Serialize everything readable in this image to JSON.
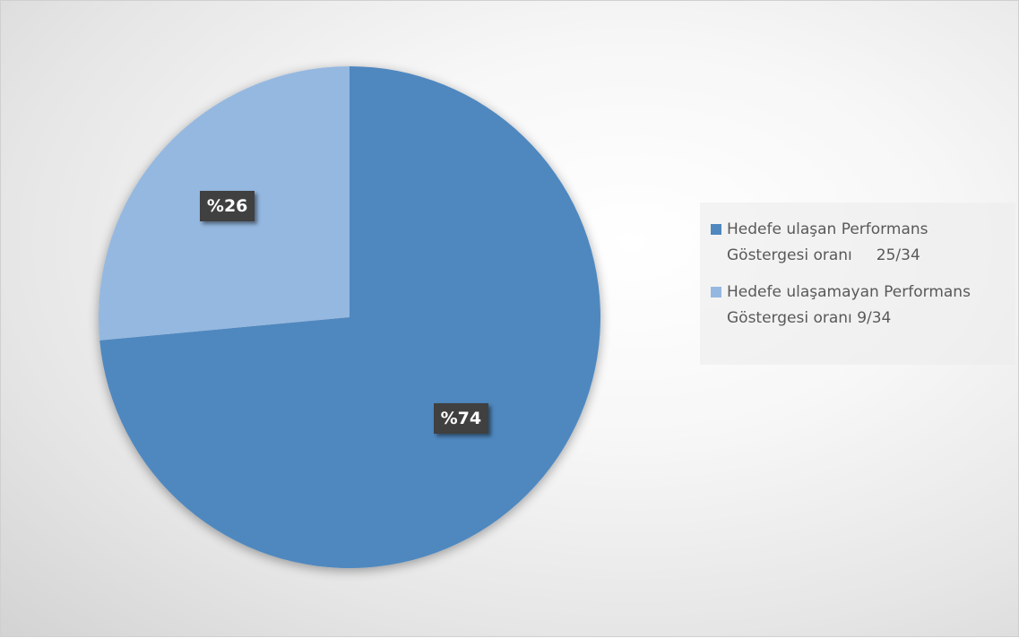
{
  "chart_data": {
    "type": "pie",
    "slices": [
      {
        "label_line1": "Hedefe ulaşan Performans",
        "label_line2": "Göstergesi oranı     25/34",
        "value": 25,
        "percent_label": "%74",
        "color": "#4f88bf"
      },
      {
        "label_line1": "Hedefe ulaşamayan Performans",
        "label_line2": "Göstergesi oranı 9/34",
        "value": 9,
        "percent_label": "%26",
        "color": "#95b8e0"
      }
    ],
    "start_angle_deg": 0,
    "direction": "clockwise",
    "legend_position": "right"
  }
}
